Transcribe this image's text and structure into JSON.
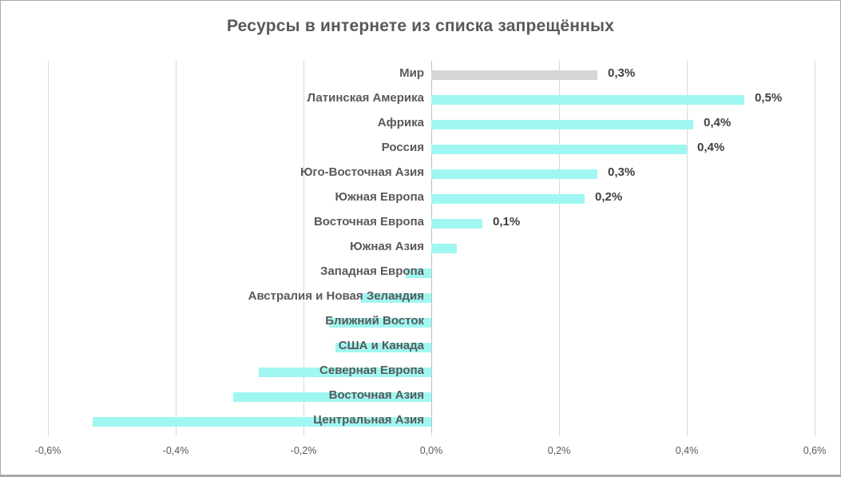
{
  "window": {
    "background": "#ffffff",
    "border_color": "#a9a9a9"
  },
  "chart_data": {
    "type": "bar",
    "orientation": "horizontal",
    "title": "Ресурсы в интернете из списка запрещённых",
    "categories": [
      "Мир",
      "Латинская Америка",
      "Африка",
      "Россия",
      "Юго-Восточная Азия",
      "Южная Европа",
      "Восточная Европа",
      "Южная Азия",
      "Западная Европа",
      "Австралия и Новая Зеландия",
      "Ближний Восток",
      "США и Канада",
      "Северная Европа",
      "Восточная Азия",
      "Центральная Азия"
    ],
    "values": [
      0.26,
      0.49,
      0.41,
      0.4,
      0.26,
      0.24,
      0.08,
      0.04,
      -0.04,
      -0.11,
      -0.16,
      -0.15,
      -0.27,
      -0.31,
      -0.53
    ],
    "value_labels": [
      "0,3%",
      "0,5%",
      "0,4%",
      "0,4%",
      "0,3%",
      "0,2%",
      "0,1%",
      "",
      "",
      "",
      "",
      "",
      "",
      "",
      ""
    ],
    "bar_colors": [
      "#d6d6d6",
      "#a0f7f1",
      "#a0f7f1",
      "#a0f7f1",
      "#a0f7f1",
      "#a0f7f1",
      "#a0f7f1",
      "#a0f7f1",
      "#a0f7f1",
      "#a0f7f1",
      "#a0f7f1",
      "#a0f7f1",
      "#a0f7f1",
      "#a0f7f1",
      "#a0f7f1"
    ],
    "xlim": [
      -0.6,
      0.6
    ],
    "grid": true,
    "legend": "none",
    "x_axis": {
      "ticks": [
        {
          "value": -0.6,
          "label": "-0,6%"
        },
        {
          "value": -0.4,
          "label": "-0,4%"
        },
        {
          "value": -0.2,
          "label": "-0,2%"
        },
        {
          "value": 0.0,
          "label": "0,0%"
        },
        {
          "value": 0.2,
          "label": "0,2%"
        },
        {
          "value": 0.4,
          "label": "0,4%"
        },
        {
          "value": 0.6,
          "label": "0,6%"
        }
      ]
    },
    "colors": {
      "bar_world": "#d6d6d6",
      "bar_region": "#a0f7f1",
      "gridline": "#d9d9d9",
      "zero_axis": "#bfbfbf",
      "category_text": "#595959",
      "value_text": "#404040",
      "axis_text": "#595959",
      "title_text": "#595959"
    }
  }
}
